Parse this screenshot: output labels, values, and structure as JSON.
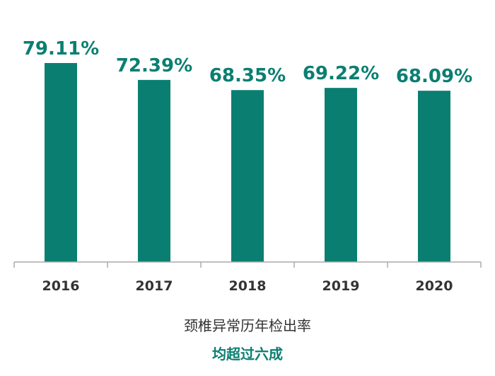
{
  "chart_data": {
    "type": "bar",
    "categories": [
      "2016",
      "2017",
      "2018",
      "2019",
      "2020"
    ],
    "values": [
      79.11,
      72.39,
      68.35,
      69.22,
      68.09
    ],
    "value_labels": [
      "79.11%",
      "72.39%",
      "68.35%",
      "69.22%",
      "68.09%"
    ],
    "unit": "%",
    "xlabel": "颈椎异常历年检出率",
    "ylabel": "",
    "ylim": [
      0,
      80
    ],
    "grid": false,
    "bar_color": "#0a7f71",
    "label_color": "#0a7f71"
  },
  "caption": {
    "text": "均超过六成"
  }
}
